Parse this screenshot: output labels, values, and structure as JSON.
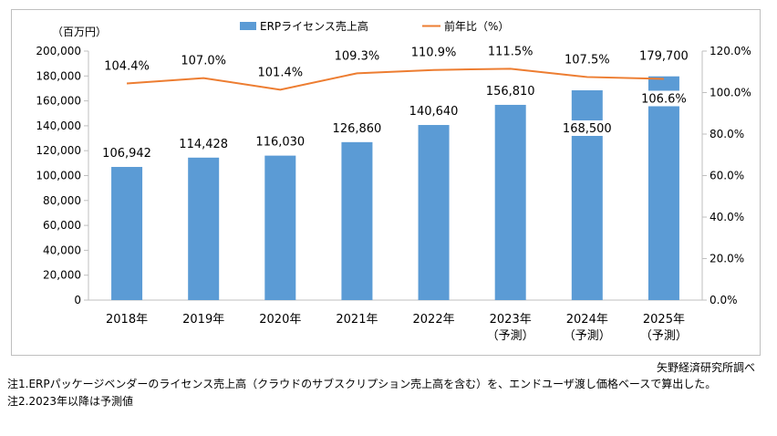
{
  "chart_data": {
    "type": "bar",
    "categories": [
      [
        "2018年"
      ],
      [
        "2019年"
      ],
      [
        "2020年"
      ],
      [
        "2021年"
      ],
      [
        "2022年"
      ],
      [
        "2023年",
        "（予測）"
      ],
      [
        "2024年",
        "（予測）"
      ],
      [
        "2025年",
        "（予測）"
      ]
    ],
    "series": [
      {
        "name": "ERPライセンス売上高",
        "type": "bar",
        "axis": "left",
        "values": [
          106942,
          114428,
          116030,
          126860,
          140640,
          156810,
          168500,
          179700
        ],
        "labels": [
          "106,942",
          "114,428",
          "116,030",
          "126,860",
          "140,640",
          "156,810",
          "168,500",
          "179,700"
        ],
        "color": "#5b9bd5"
      },
      {
        "name": "前年比（%）",
        "type": "line",
        "axis": "right",
        "values": [
          104.4,
          107.0,
          101.4,
          109.3,
          110.9,
          111.5,
          107.5,
          106.6
        ],
        "labels": [
          "104.4%",
          "107.0%",
          "101.4%",
          "109.3%",
          "110.9%",
          "111.5%",
          "107.5%",
          "106.6%"
        ],
        "color": "#ed7d31"
      }
    ],
    "y_left": {
      "unit": "（百万円）",
      "min": 0,
      "max": 200000,
      "step": 20000,
      "ticks": [
        "0",
        "20,000",
        "40,000",
        "60,000",
        "80,000",
        "100,000",
        "120,000",
        "140,000",
        "160,000",
        "180,000",
        "200,000"
      ]
    },
    "y_right": {
      "min": 0,
      "max": 120,
      "step": 20,
      "ticks": [
        "0.0%",
        "20.0%",
        "40.0%",
        "60.0%",
        "80.0%",
        "100.0%",
        "120.0%"
      ]
    },
    "legend_position": "top",
    "grid": false
  },
  "notes": {
    "source": "矢野経済研究所調べ",
    "note1": "注1.ERPパッケージベンダーのライセンス売上高（クラウドのサブスクリプション売上高を含む）を、エンドユーザ渡し価格ベースで算出した。",
    "note2": "注2.2023年以降は予測値"
  }
}
